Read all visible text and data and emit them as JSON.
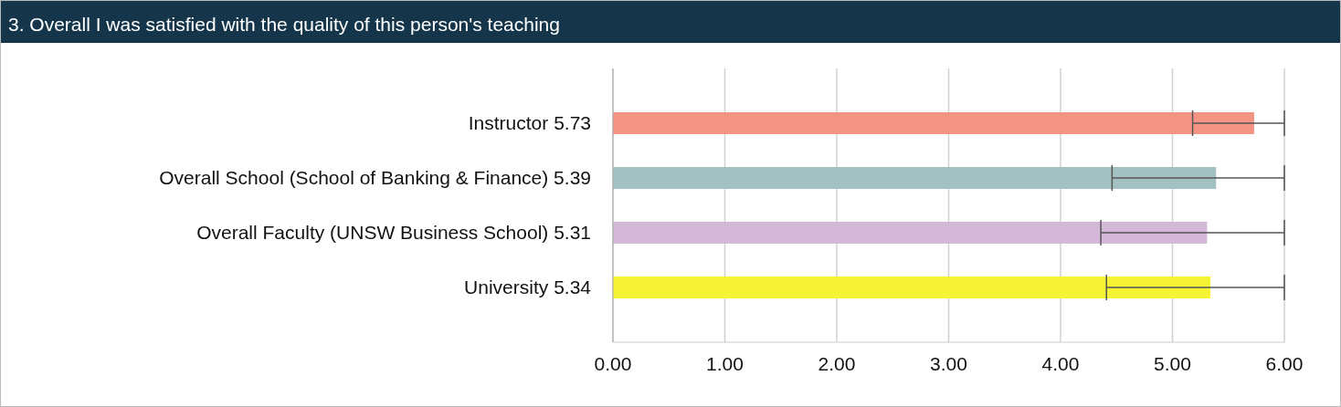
{
  "chart_data": {
    "type": "bar",
    "orientation": "horizontal",
    "title": "3. Overall I was satisfied with the quality of this person's teaching",
    "categories": [
      "Instructor 5.73",
      "Overall School (School of Banking & Finance) 5.39",
      "Overall Faculty (UNSW Business School) 5.31",
      "University 5.34"
    ],
    "values": [
      5.73,
      5.39,
      5.31,
      5.34
    ],
    "colors": [
      "#f49484",
      "#a3c1c2",
      "#d4b8d8",
      "#f5f334"
    ],
    "errors": [
      [
        5.18,
        6.0
      ],
      [
        4.46,
        6.0
      ],
      [
        4.36,
        6.0
      ],
      [
        4.41,
        6.0
      ]
    ],
    "xlim": [
      0,
      6
    ],
    "xticks": [
      {
        "value": 0,
        "label": "0.00"
      },
      {
        "value": 1,
        "label": "1.00"
      },
      {
        "value": 2,
        "label": "2.00"
      },
      {
        "value": 3,
        "label": "3.00"
      },
      {
        "value": 4,
        "label": "4.00"
      },
      {
        "value": 5,
        "label": "5.00"
      },
      {
        "value": 6,
        "label": "6.00"
      }
    ],
    "grid": "x",
    "legend": false
  }
}
